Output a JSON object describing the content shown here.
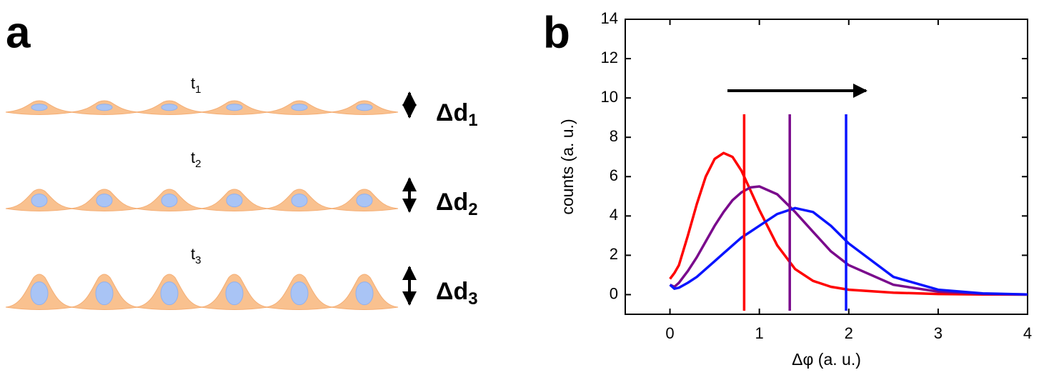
{
  "panel_a": {
    "letter": "a",
    "rows": [
      {
        "time": {
          "base": "t",
          "sub": "1"
        },
        "label": {
          "base": "Δd",
          "sub": "1"
        }
      },
      {
        "time": {
          "base": "t",
          "sub": "2"
        },
        "label": {
          "base": "Δd",
          "sub": "2"
        }
      },
      {
        "time": {
          "base": "t",
          "sub": "3"
        },
        "label": {
          "base": "Δd",
          "sub": "3"
        }
      }
    ]
  },
  "chart_data": {
    "type": "line",
    "letter": "b",
    "x_label": "Δφ (a. u.)",
    "y_label": "counts (a. u.)",
    "xlim": [
      -0.5,
      4
    ],
    "ylim": [
      -1,
      14
    ],
    "xticks": [
      0,
      1,
      2,
      3,
      4
    ],
    "yticks": [
      0,
      2,
      4,
      6,
      8,
      10,
      12,
      14
    ],
    "x": [
      0,
      0.05,
      0.1,
      0.2,
      0.3,
      0.4,
      0.5,
      0.6,
      0.7,
      0.8,
      0.9,
      1.0,
      1.2,
      1.4,
      1.6,
      1.8,
      2.0,
      2.5,
      3,
      3.5,
      4
    ],
    "series": [
      {
        "color": "#ff0000",
        "values": [
          0.8,
          1.1,
          1.5,
          3.0,
          4.6,
          6.0,
          6.9,
          7.2,
          7.0,
          6.3,
          5.3,
          4.3,
          2.5,
          1.3,
          0.7,
          0.4,
          0.25,
          0.1,
          0.03,
          0.01,
          0
        ]
      },
      {
        "color": "#7a0a8c",
        "values": [
          0.5,
          0.4,
          0.6,
          1.2,
          1.9,
          2.7,
          3.5,
          4.2,
          4.8,
          5.2,
          5.45,
          5.5,
          5.1,
          4.2,
          3.2,
          2.2,
          1.5,
          0.5,
          0.15,
          0.04,
          0.01
        ]
      },
      {
        "color": "#0a14ff",
        "values": [
          0.5,
          0.3,
          0.35,
          0.6,
          0.9,
          1.3,
          1.7,
          2.1,
          2.5,
          2.9,
          3.2,
          3.5,
          4.1,
          4.4,
          4.2,
          3.5,
          2.6,
          0.9,
          0.25,
          0.06,
          0.01
        ]
      }
    ],
    "mean_lines": [
      {
        "x": 0.83,
        "color": "#ff0000"
      },
      {
        "x": 1.34,
        "color": "#7a0a8c"
      },
      {
        "x": 1.97,
        "color": "#0a14ff"
      }
    ]
  }
}
